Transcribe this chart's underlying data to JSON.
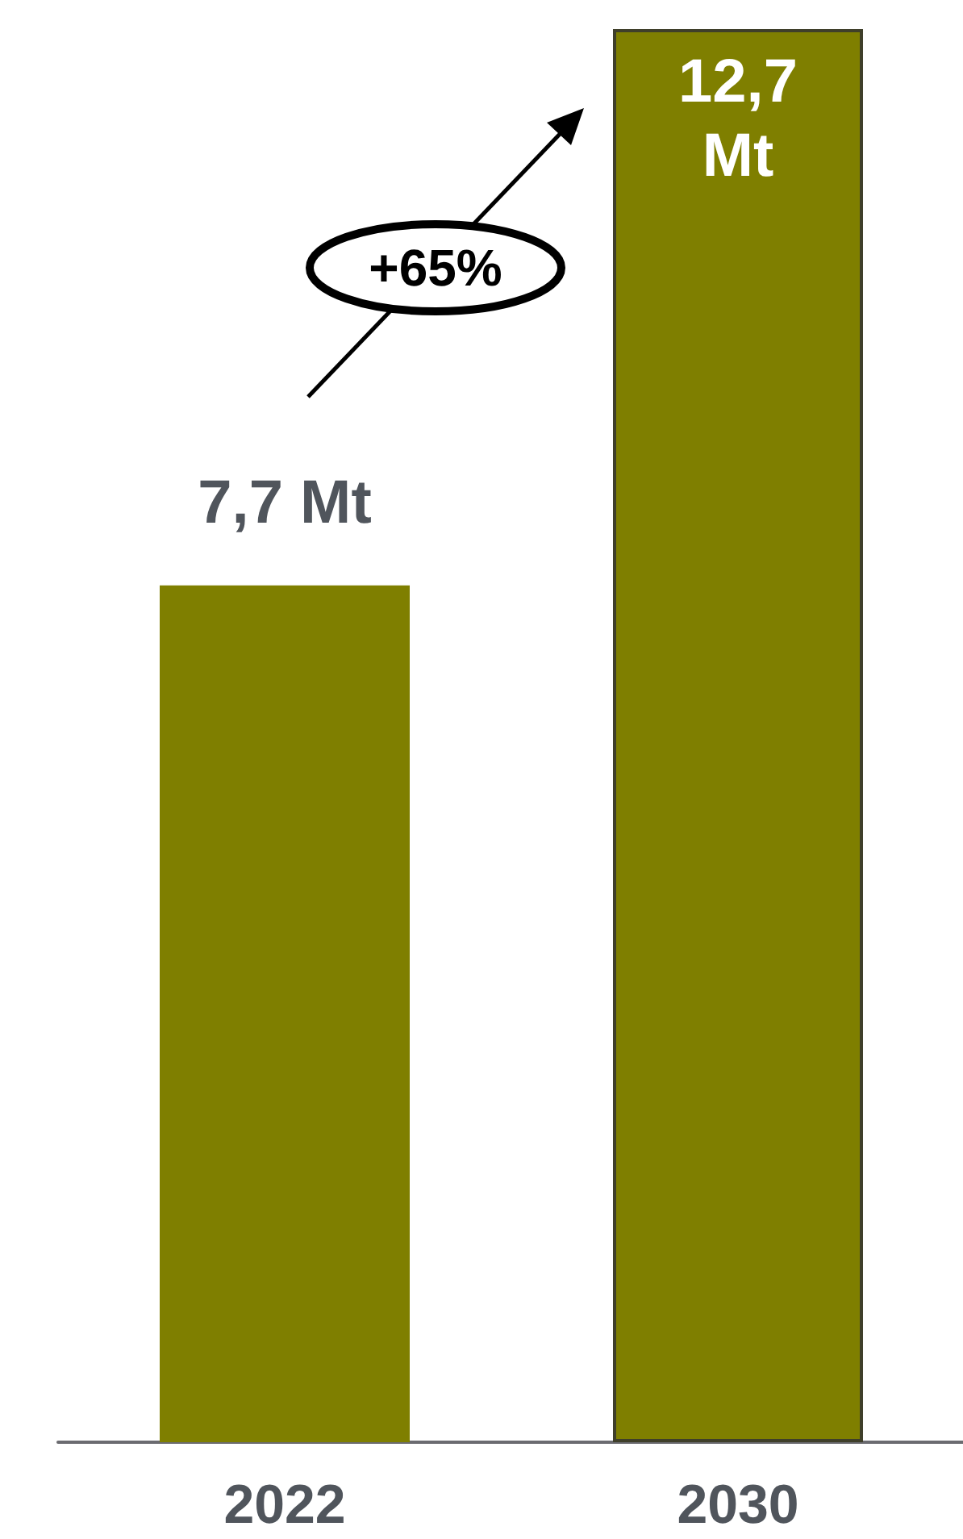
{
  "chart_data": {
    "type": "bar",
    "categories": [
      "2022",
      "2030"
    ],
    "values": [
      7.7,
      12.7
    ],
    "value_labels": [
      "7,7 Mt",
      "12,7 Mt"
    ],
    "color": "#7f7f00",
    "annotations": [
      "+65%"
    ]
  }
}
